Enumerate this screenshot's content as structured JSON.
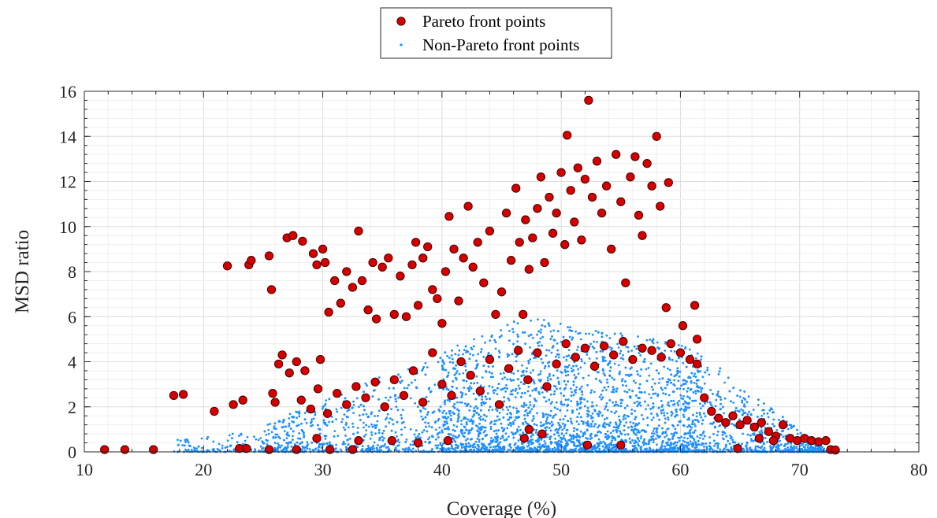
{
  "chart_data": {
    "type": "scatter",
    "title": "",
    "xlabel": "Coverage (%)",
    "ylabel": "MSD ratio",
    "xlim": [
      10,
      80
    ],
    "ylim": [
      0,
      16
    ],
    "x_ticks": [
      "10",
      "20",
      "30",
      "40",
      "50",
      "60",
      "70",
      "80"
    ],
    "y_ticks": [
      "0",
      "2",
      "4",
      "6",
      "8",
      "10",
      "12",
      "14",
      "16"
    ],
    "grid": true,
    "minor_grid": true,
    "legend_position": "top-center",
    "series": [
      {
        "name": "Pareto front points",
        "color": "#d40000",
        "edge_color": "#3a0000",
        "marker": "circle-large",
        "points": [
          [
            11.7,
            0.1
          ],
          [
            13.4,
            0.1
          ],
          [
            15.8,
            0.1
          ],
          [
            17.5,
            2.5
          ],
          [
            18.3,
            2.55
          ],
          [
            20.9,
            1.8
          ],
          [
            22.0,
            8.25
          ],
          [
            22.5,
            2.1
          ],
          [
            23.3,
            2.3
          ],
          [
            23.0,
            0.15
          ],
          [
            23.6,
            0.15
          ],
          [
            23.8,
            8.3
          ],
          [
            24.0,
            8.5
          ],
          [
            25.5,
            8.7
          ],
          [
            25.7,
            7.2
          ],
          [
            25.8,
            2.6
          ],
          [
            26.0,
            2.2
          ],
          [
            26.3,
            3.9
          ],
          [
            26.6,
            4.3
          ],
          [
            27.0,
            9.5
          ],
          [
            27.5,
            9.6
          ],
          [
            27.2,
            3.5
          ],
          [
            27.8,
            4.0
          ],
          [
            28.3,
            9.35
          ],
          [
            28.5,
            3.6
          ],
          [
            29.2,
            8.8
          ],
          [
            29.5,
            8.3
          ],
          [
            29.8,
            4.1
          ],
          [
            30.0,
            9.0
          ],
          [
            30.2,
            8.4
          ],
          [
            30.5,
            6.2
          ],
          [
            31.0,
            7.6
          ],
          [
            31.5,
            6.6
          ],
          [
            32.0,
            8.0
          ],
          [
            32.5,
            7.3
          ],
          [
            33.0,
            9.8
          ],
          [
            33.3,
            7.6
          ],
          [
            33.8,
            6.3
          ],
          [
            34.2,
            8.4
          ],
          [
            34.5,
            5.9
          ],
          [
            35.0,
            8.2
          ],
          [
            35.5,
            8.6
          ],
          [
            36.0,
            6.1
          ],
          [
            36.5,
            7.8
          ],
          [
            37.0,
            6.0
          ],
          [
            37.5,
            8.3
          ],
          [
            37.8,
            9.3
          ],
          [
            38.0,
            6.5
          ],
          [
            38.4,
            8.6
          ],
          [
            38.8,
            9.1
          ],
          [
            39.2,
            7.2
          ],
          [
            39.6,
            6.8
          ],
          [
            40.0,
            5.7
          ],
          [
            40.3,
            8.0
          ],
          [
            40.6,
            10.45
          ],
          [
            41.0,
            9.0
          ],
          [
            41.4,
            6.7
          ],
          [
            41.8,
            8.6
          ],
          [
            42.2,
            10.9
          ],
          [
            42.6,
            8.2
          ],
          [
            43.0,
            9.3
          ],
          [
            43.5,
            7.5
          ],
          [
            44.0,
            9.8
          ],
          [
            44.5,
            6.1
          ],
          [
            45.0,
            7.1
          ],
          [
            45.4,
            10.6
          ],
          [
            45.8,
            8.5
          ],
          [
            46.2,
            11.7
          ],
          [
            46.5,
            9.3
          ],
          [
            46.8,
            6.1
          ],
          [
            47.0,
            10.3
          ],
          [
            47.3,
            8.1
          ],
          [
            47.6,
            9.5
          ],
          [
            48.0,
            10.8
          ],
          [
            48.3,
            12.2
          ],
          [
            48.6,
            8.4
          ],
          [
            49.0,
            11.3
          ],
          [
            49.3,
            9.7
          ],
          [
            49.6,
            10.6
          ],
          [
            50.0,
            12.4
          ],
          [
            50.3,
            9.2
          ],
          [
            50.5,
            14.05
          ],
          [
            50.8,
            11.6
          ],
          [
            51.1,
            10.2
          ],
          [
            51.4,
            12.6
          ],
          [
            51.7,
            9.4
          ],
          [
            52.0,
            12.1
          ],
          [
            52.3,
            15.6
          ],
          [
            52.6,
            11.3
          ],
          [
            53.0,
            12.9
          ],
          [
            53.4,
            10.6
          ],
          [
            53.8,
            11.8
          ],
          [
            54.2,
            9.0
          ],
          [
            54.6,
            13.2
          ],
          [
            55.0,
            11.1
          ],
          [
            55.4,
            7.5
          ],
          [
            55.8,
            12.2
          ],
          [
            56.2,
            13.1
          ],
          [
            56.5,
            10.5
          ],
          [
            56.8,
            9.6
          ],
          [
            57.2,
            12.8
          ],
          [
            57.6,
            11.8
          ],
          [
            58.0,
            14.0
          ],
          [
            58.3,
            10.9
          ],
          [
            58.8,
            6.4
          ],
          [
            59.0,
            11.95
          ],
          [
            60.2,
            5.6
          ],
          [
            61.2,
            6.5
          ],
          [
            61.4,
            3.9
          ],
          [
            28.2,
            2.3
          ],
          [
            29.0,
            1.9
          ],
          [
            29.6,
            2.8
          ],
          [
            30.4,
            1.7
          ],
          [
            31.2,
            2.6
          ],
          [
            32.0,
            2.1
          ],
          [
            32.8,
            2.9
          ],
          [
            33.6,
            2.4
          ],
          [
            34.4,
            3.1
          ],
          [
            35.2,
            2.0
          ],
          [
            36.0,
            3.2
          ],
          [
            36.8,
            2.5
          ],
          [
            37.6,
            3.6
          ],
          [
            38.4,
            2.2
          ],
          [
            39.2,
            4.4
          ],
          [
            40.0,
            3.0
          ],
          [
            40.8,
            2.5
          ],
          [
            41.6,
            4.0
          ],
          [
            42.4,
            3.4
          ],
          [
            43.2,
            2.7
          ],
          [
            44.0,
            4.1
          ],
          [
            44.8,
            2.1
          ],
          [
            45.6,
            3.7
          ],
          [
            46.4,
            4.5
          ],
          [
            47.2,
            3.2
          ],
          [
            48.0,
            4.4
          ],
          [
            48.8,
            2.9
          ],
          [
            49.6,
            3.9
          ],
          [
            50.4,
            4.8
          ],
          [
            51.2,
            4.2
          ],
          [
            52.0,
            4.6
          ],
          [
            52.8,
            3.8
          ],
          [
            53.6,
            4.7
          ],
          [
            54.4,
            4.3
          ],
          [
            55.2,
            4.9
          ],
          [
            56.0,
            4.1
          ],
          [
            56.8,
            4.6
          ],
          [
            57.6,
            4.5
          ],
          [
            58.4,
            4.2
          ],
          [
            59.2,
            4.8
          ],
          [
            60.0,
            4.4
          ],
          [
            60.8,
            4.1
          ],
          [
            61.4,
            5.0
          ],
          [
            62.0,
            2.4
          ],
          [
            62.6,
            1.8
          ],
          [
            63.2,
            1.5
          ],
          [
            63.8,
            1.3
          ],
          [
            64.4,
            1.6
          ],
          [
            65.0,
            1.2
          ],
          [
            65.6,
            1.4
          ],
          [
            66.2,
            1.1
          ],
          [
            66.8,
            1.3
          ],
          [
            67.4,
            0.9
          ],
          [
            68.0,
            0.7
          ],
          [
            68.6,
            1.2
          ],
          [
            69.2,
            0.6
          ],
          [
            69.8,
            0.5
          ],
          [
            70.4,
            0.6
          ],
          [
            71.0,
            0.5
          ],
          [
            71.6,
            0.45
          ],
          [
            72.2,
            0.5
          ],
          [
            72.6,
            0.1
          ],
          [
            73.0,
            0.08
          ],
          [
            64.8,
            0.15
          ],
          [
            66.6,
            0.6
          ],
          [
            67.8,
            0.5
          ],
          [
            29.5,
            0.6
          ],
          [
            33.0,
            0.5
          ],
          [
            35.8,
            0.5
          ],
          [
            38.0,
            0.4
          ],
          [
            40.5,
            0.5
          ],
          [
            46.9,
            0.6
          ],
          [
            47.3,
            1.0
          ],
          [
            48.4,
            0.8
          ],
          [
            52.2,
            0.3
          ],
          [
            55.0,
            0.3
          ],
          [
            25.5,
            0.1
          ],
          [
            27.8,
            0.1
          ],
          [
            30.6,
            0.1
          ],
          [
            32.5,
            0.1
          ]
        ]
      },
      {
        "name": "Non-Pareto front points",
        "color": "#1e90ff",
        "marker": "dot-small",
        "cloud_summary": {
          "x_range": [
            17.5,
            72.5
          ],
          "y_range": [
            0,
            6.0
          ],
          "densest_region": "x 40–60, y 0–1",
          "peak_envelope_x": 47,
          "peak_envelope_y": 6.0
        }
      }
    ]
  }
}
